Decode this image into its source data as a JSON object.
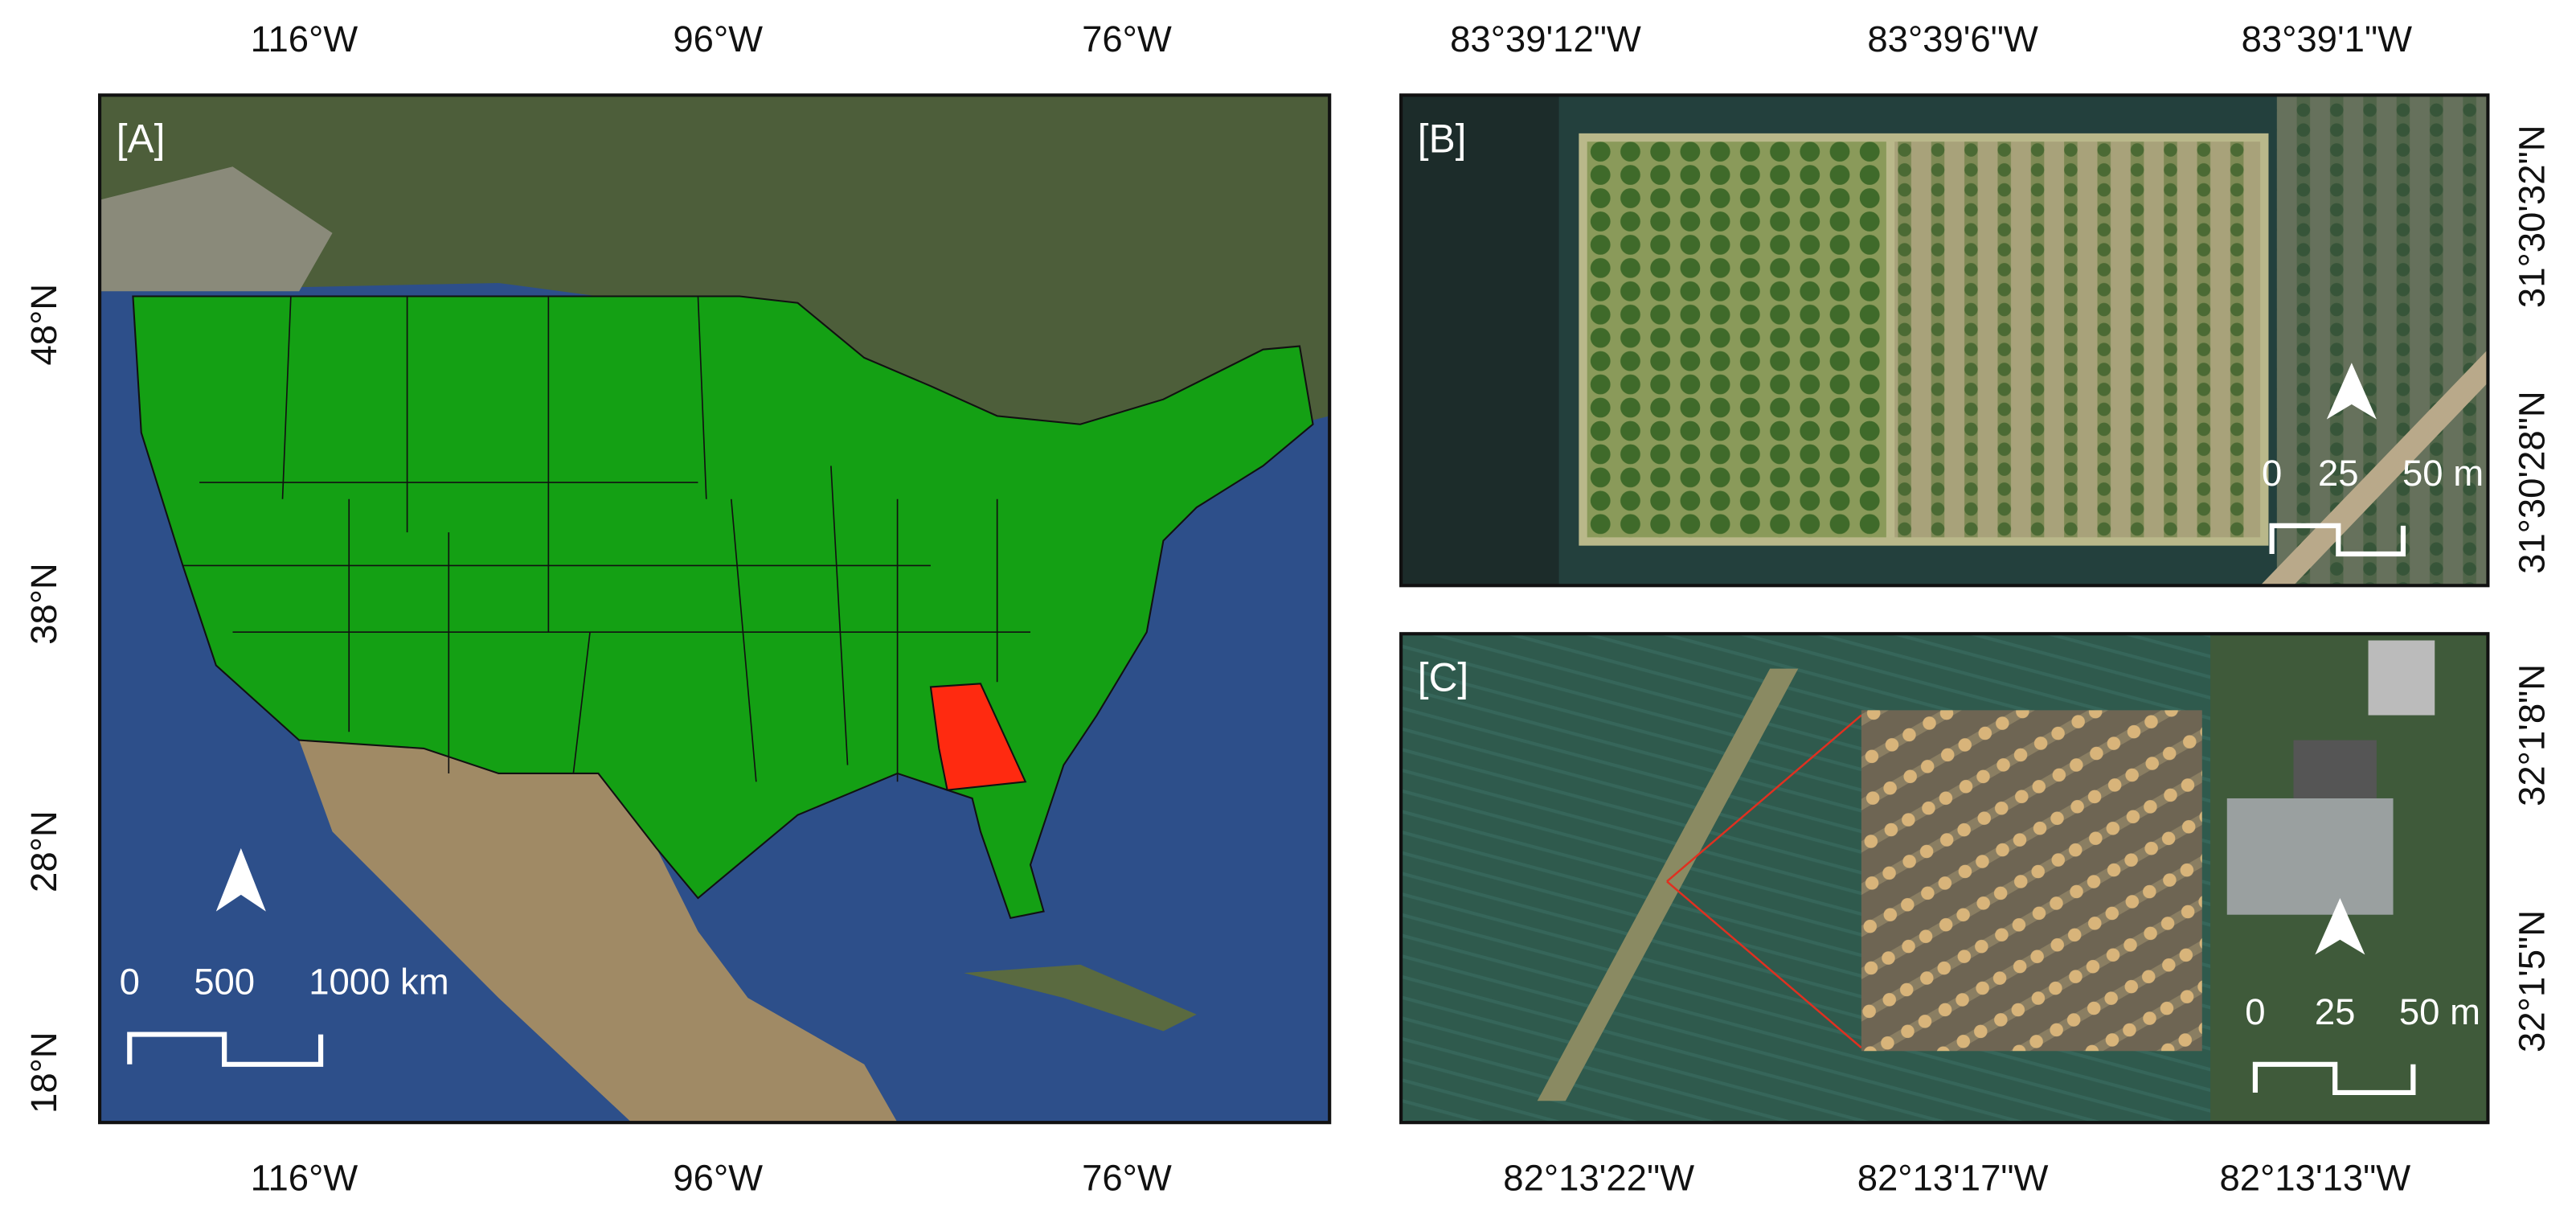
{
  "panels": [
    {
      "label": "[A]",
      "top_ticks": [
        "116°W",
        "96°W",
        "76°W"
      ],
      "bottom_ticks": [
        "116°W",
        "96°W",
        "76°W"
      ],
      "left_ticks": [
        "48°N",
        "38°N",
        "28°N",
        "18°N"
      ],
      "scale_bar": [
        "0",
        "500",
        "1000 km"
      ]
    },
    {
      "label": "[B]",
      "top_ticks": [
        "83°39'12\"W",
        "83°39'6\"W",
        "83°39'1\"W"
      ],
      "right_ticks": [
        "31°30'32\"N",
        "31°30'28\"N"
      ],
      "scale_bar": [
        "0",
        "25",
        "50 m"
      ]
    },
    {
      "label": "[C]",
      "bottom_ticks": [
        "82°13'22\"W",
        "82°13'17\"W",
        "82°13'13\"W"
      ],
      "right_ticks": [
        "32°1'8\"N",
        "32°1'5\"N"
      ],
      "scale_bar": [
        "0",
        "25",
        "50 m"
      ]
    }
  ]
}
